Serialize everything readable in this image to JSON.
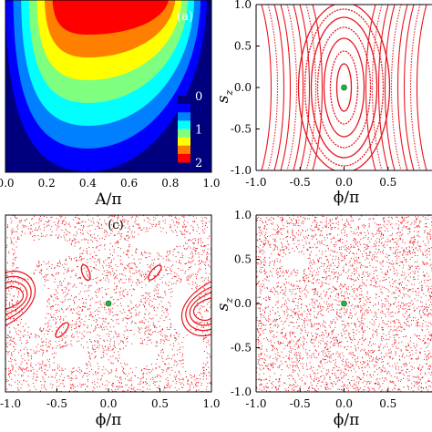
{
  "chart_data": [
    {
      "type": "heatmap",
      "panel_label": "(a)",
      "xlabel": "A/π",
      "xlim": [
        0.0,
        1.0
      ],
      "xticks": [
        "0.0",
        "0.2",
        "0.4",
        "0.6",
        "0.8",
        "1.0"
      ],
      "colorbar": {
        "ticks": [
          "0",
          "1",
          "2"
        ],
        "range": [
          0,
          2
        ],
        "colors": [
          "#00007f",
          "#0000ff",
          "#007fff",
          "#00ffff",
          "#7fff7f",
          "#ffff00",
          "#ff7f00",
          "#ff0000"
        ]
      },
      "background_color": "#00007f",
      "peak_x": 0.4
    },
    {
      "type": "scatter",
      "xlabel": "ϕ/π",
      "ylabel": "s",
      "ylabel_sub": "z",
      "xlim": [
        -1.0,
        1.0
      ],
      "ylim": [
        -1.0,
        1.0
      ],
      "xticks": [
        "-1.0",
        "-0.5",
        "0.0",
        "0.5"
      ],
      "yticks": [
        "1.0",
        "0.5",
        "0.0",
        "-0.5",
        "-1.0"
      ],
      "regime": "regular",
      "fixed_point": [
        0.0,
        0.0
      ],
      "point_color": "#e8141c",
      "fixed_point_color": "#22b43c"
    },
    {
      "type": "scatter",
      "panel_label": "(c)",
      "xlabel": "ϕ/π",
      "xlim": [
        -1.0,
        1.0
      ],
      "ylim": [
        -1.0,
        1.0
      ],
      "xticks": [
        "-1.0",
        "-0.5",
        "0.0",
        "0.5",
        "1.0"
      ],
      "regime": "mixed",
      "fixed_point": [
        0.0,
        0.0
      ],
      "point_color": "#e8141c",
      "fixed_point_color": "#22b43c"
    },
    {
      "type": "scatter",
      "xlabel": "ϕ/π",
      "ylabel": "s",
      "ylabel_sub": "z",
      "xlim": [
        -1.0,
        1.0
      ],
      "ylim": [
        -1.0,
        1.0
      ],
      "xticks": [
        "-1.0",
        "-0.5",
        "0.0",
        "0.5"
      ],
      "yticks": [
        "1.0",
        "0.5",
        "0.0",
        "-0.5",
        "-1.0"
      ],
      "regime": "chaotic",
      "fixed_point": [
        0.0,
        0.0
      ],
      "point_color": "#e8141c",
      "fixed_point_color": "#22b43c"
    }
  ]
}
